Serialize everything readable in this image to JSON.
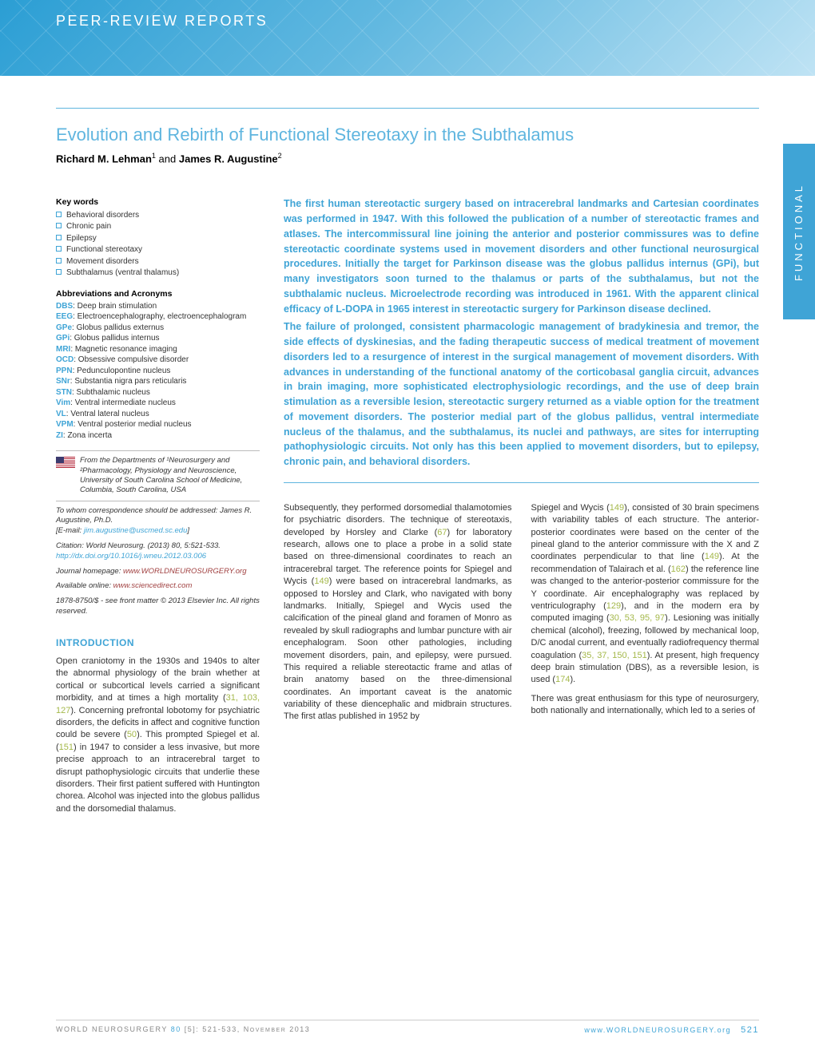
{
  "header": {
    "section_label": "Peer-Review Reports",
    "side_tab": "FUNCTIONAL"
  },
  "article": {
    "title": "Evolution and Rebirth of Functional Stereotaxy in the Subthalamus",
    "authors_html": "Richard M. Lehman¹ and James R. Augustine²"
  },
  "keywords": {
    "heading": "Key words",
    "items": [
      "Behavioral disorders",
      "Chronic pain",
      "Epilepsy",
      "Functional stereotaxy",
      "Movement disorders",
      "Subthalamus (ventral thalamus)"
    ]
  },
  "abbreviations": {
    "heading": "Abbreviations and Acronyms",
    "items": [
      {
        "k": "DBS",
        "v": "Deep brain stimulation"
      },
      {
        "k": "EEG",
        "v": "Electroencephalography, electroencephalogram"
      },
      {
        "k": "GPe",
        "v": "Globus pallidus externus"
      },
      {
        "k": "GPi",
        "v": "Globus pallidus internus"
      },
      {
        "k": "MRI",
        "v": "Magnetic resonance imaging"
      },
      {
        "k": "OCD",
        "v": "Obsessive compulsive disorder"
      },
      {
        "k": "PPN",
        "v": "Pedunculopontine nucleus"
      },
      {
        "k": "SNr",
        "v": "Substantia nigra pars reticularis"
      },
      {
        "k": "STN",
        "v": "Subthalamic nucleus"
      },
      {
        "k": "Vim",
        "v": "Ventral intermediate nucleus"
      },
      {
        "k": "VL",
        "v": "Ventral lateral nucleus"
      },
      {
        "k": "VPM",
        "v": "Ventral posterior medial nucleus"
      },
      {
        "k": "ZI",
        "v": "Zona incerta"
      }
    ]
  },
  "affiliation": "From the Departments of ¹Neurosurgery and ²Pharmacology, Physiology and Neuroscience, University of South Carolina School of Medicine, Columbia, South Carolina, USA",
  "correspondence": {
    "to": "To whom correspondence should be addressed: James R. Augustine, Ph.D.",
    "email_label": "[E-mail: ",
    "email": "jim.augustine@uscmed.sc.edu",
    "email_close": "]"
  },
  "citation": {
    "text": "Citation: World Neurosurg. (2013) 80, 5:521-533.",
    "doi": "http://dx.doi.org/10.1016/j.wneu.2012.03.006"
  },
  "journal": {
    "homepage_label": "Journal homepage: ",
    "homepage": "www.WORLDNEUROSURGERY.org",
    "online_label": "Available online: ",
    "online": "www.sciencedirect.com"
  },
  "copyright": "1878-8750/$ - see front matter © 2013 Elsevier Inc. All rights reserved.",
  "introduction": {
    "heading": "INTRODUCTION",
    "para1": "Open craniotomy in the 1930s and 1940s to alter the abnormal physiology of the brain whether at cortical or subcortical levels carried a significant morbidity, and at times a high mortality (31, 103, 127). Concerning prefrontal lobotomy for psychiatric disorders, the deficits in affect and cognitive function could be severe (50). This prompted Spiegel et al. (151) in 1947 to consider a less invasive, but more precise approach to an intracerebral target to disrupt pathophysiologic circuits that underlie these disorders. Their first patient suffered with Huntington chorea. Alcohol was injected into the globus pallidus and the dorsomedial thalamus."
  },
  "abstract": {
    "p1": "The first human stereotactic surgery based on intracerebral landmarks and Cartesian coordinates was performed in 1947. With this followed the publication of a number of stereotactic frames and atlases. The intercommissural line joining the anterior and posterior commissures was to define stereotactic coordinate systems used in movement disorders and other functional neurosurgical procedures. Initially the target for Parkinson disease was the globus pallidus internus (GPi), but many investigators soon turned to the thalamus or parts of the subthalamus, but not the subthalamic nucleus. Microelectrode recording was introduced in 1961. With the apparent clinical efficacy of L-DOPA in 1965 interest in stereotactic surgery for Parkinson disease declined.",
    "p2": "The failure of prolonged, consistent pharmacologic management of bradykinesia and tremor, the side effects of dyskinesias, and the fading therapeutic success of medical treatment of movement disorders led to a resurgence of interest in the surgical management of movement disorders. With advances in understanding of the functional anatomy of the corticobasal ganglia circuit, advances in brain imaging, more sophisticated electrophysiologic recordings, and the use of deep brain stimulation as a reversible lesion, stereotactic surgery returned as a viable option for the treatment of movement disorders. The posterior medial part of the globus pallidus, ventral intermediate nucleus of the thalamus, and the subthalamus, its nuclei and pathways, are sites for interrupting pathophysiologic circuits. Not only has this been applied to movement disorders, but to epilepsy, chronic pain, and behavioral disorders."
  },
  "body": {
    "col1": "Subsequently, they performed dorsomedial thalamotomies for psychiatric disorders. The technique of stereotaxis, developed by Horsley and Clarke (67) for laboratory research, allows one to place a probe in a solid state based on three-dimensional coordinates to reach an intracerebral target. The reference points for Spiegel and Wycis (149) were based on intracerebral landmarks, as opposed to Horsley and Clark, who navigated with bony landmarks. Initially, Spiegel and Wycis used the calcification of the pineal gland and foramen of Monro as revealed by skull radiographs and lumbar puncture with air encephalogram. Soon other pathologies, including movement disorders, pain, and epilepsy, were pursued. This required a reliable stereotactic frame and atlas of brain anatomy based on the three-dimensional coordinates. An important caveat is the anatomic variability of these diencephalic and midbrain structures. The first atlas published in 1952 by",
    "col2": "Spiegel and Wycis (149), consisted of 30 brain specimens with variability tables of each structure. The anterior-posterior coordinates were based on the center of the pineal gland to the anterior commissure with the X and Z coordinates perpendicular to that line (149). At the recommendation of Talairach et al. (162) the reference line was changed to the anterior-posterior commissure for the Y coordinate. Air encephalography was replaced by ventriculography (129), and in the modern era by computed imaging (30, 53, 95, 97). Lesioning was initially chemical (alcohol), freezing, followed by mechanical loop, D/C anodal current, and eventually radiofrequency thermal coagulation (35, 37, 150, 151). At present, high frequency deep brain stimulation (DBS), as a reversible lesion, is used (174).",
    "col2_p2": "There was great enthusiasm for this type of neurosurgery, both nationally and internationally, which led to a series of"
  },
  "footer": {
    "left": "WORLD NEUROSURGERY 80 [5]: 521-533, November 2013",
    "right_url": "www.WORLDNEUROSURGERY.org",
    "page": "521"
  },
  "colors": {
    "accent_blue": "#3fa4d6",
    "ref_green": "#a4b84a",
    "link_maroon": "#a04040"
  }
}
